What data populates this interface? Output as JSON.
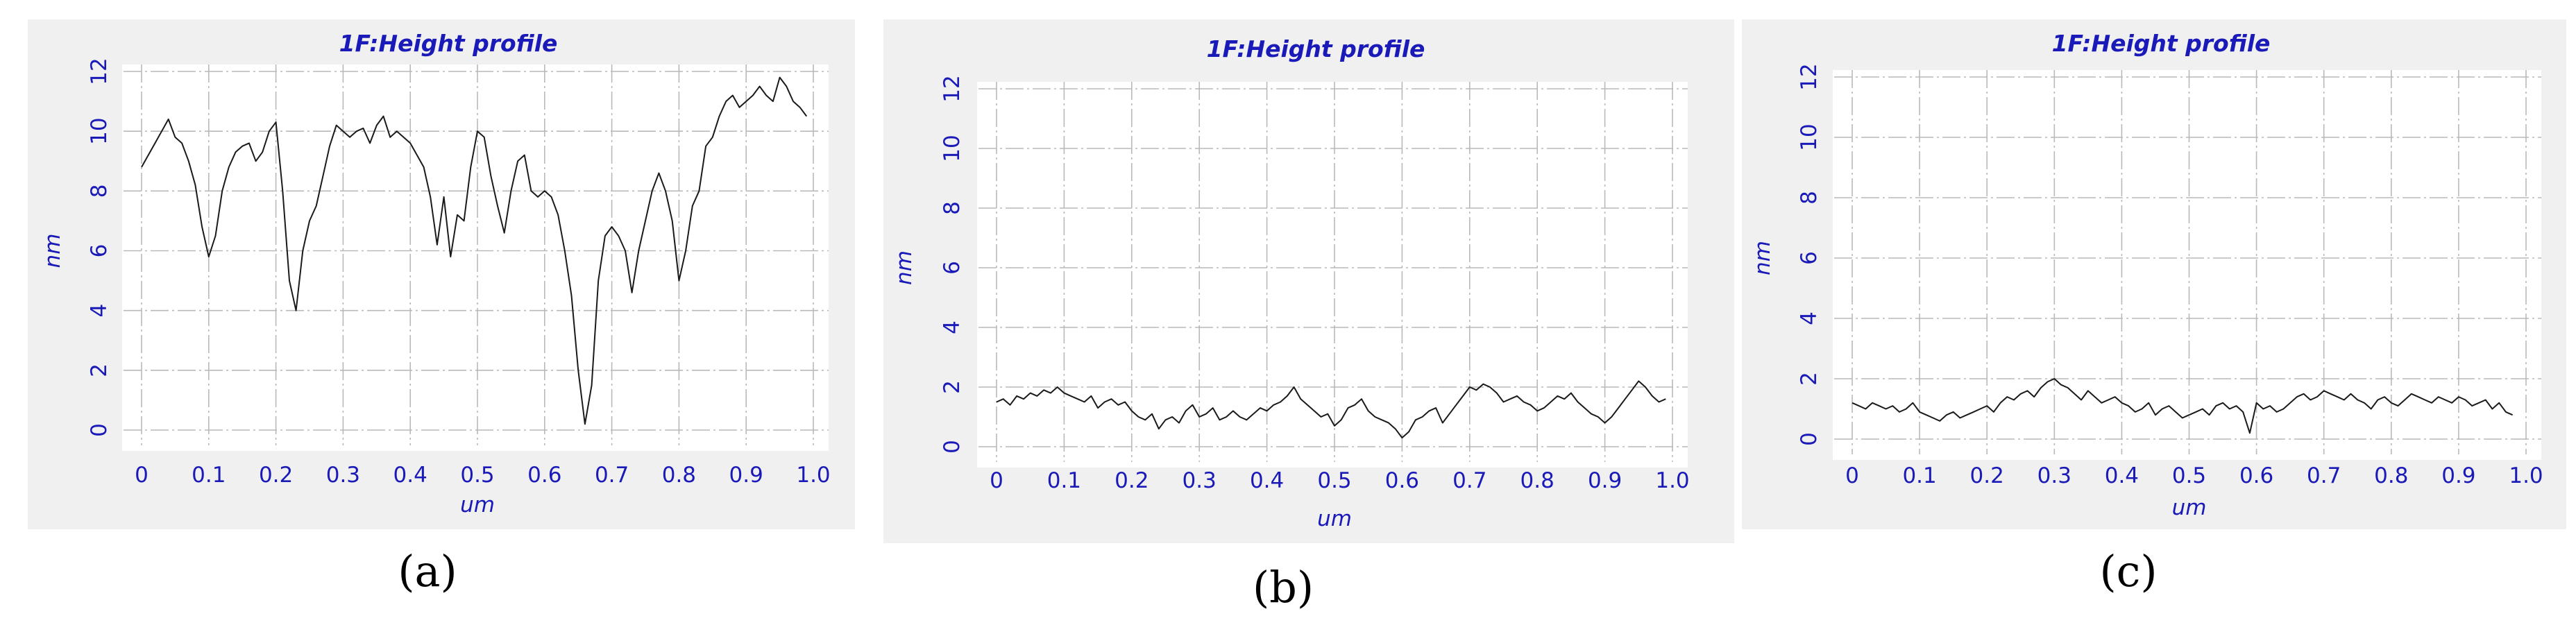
{
  "chart_data": [
    {
      "type": "line",
      "title": "1F:Height profile",
      "xlabel": "um",
      "ylabel": "nm",
      "xlim": [
        0,
        1.0
      ],
      "ylim": [
        0,
        12
      ],
      "xticks": [
        "0",
        "0.1",
        "0.2",
        "0.3",
        "0.4",
        "0.5",
        "0.6",
        "0.7",
        "0.8",
        "0.9",
        "1.0"
      ],
      "yticks": [
        "0",
        "2",
        "4",
        "6",
        "8",
        "10",
        "12"
      ],
      "caption": "(a)",
      "series": [
        {
          "x": [
            0,
            0.01,
            0.02,
            0.03,
            0.04,
            0.05,
            0.06,
            0.07,
            0.08,
            0.09,
            0.1,
            0.11,
            0.12,
            0.13,
            0.14,
            0.15,
            0.16,
            0.17,
            0.18,
            0.19,
            0.2,
            0.21,
            0.22,
            0.23,
            0.24,
            0.25,
            0.26,
            0.27,
            0.28,
            0.29,
            0.3,
            0.31,
            0.32,
            0.33,
            0.34,
            0.35,
            0.36,
            0.37,
            0.38,
            0.39,
            0.4,
            0.41,
            0.42,
            0.43,
            0.44,
            0.45,
            0.46,
            0.47,
            0.48,
            0.49,
            0.5,
            0.51,
            0.52,
            0.53,
            0.54,
            0.55,
            0.56,
            0.57,
            0.58,
            0.59,
            0.6,
            0.61,
            0.62,
            0.63,
            0.64,
            0.65,
            0.66,
            0.67,
            0.68,
            0.69,
            0.7,
            0.71,
            0.72,
            0.73,
            0.74,
            0.75,
            0.76,
            0.77,
            0.78,
            0.79,
            0.8,
            0.81,
            0.82,
            0.83,
            0.84,
            0.85,
            0.86,
            0.87,
            0.88,
            0.89,
            0.9,
            0.91,
            0.92,
            0.93,
            0.94,
            0.95,
            0.96,
            0.97,
            0.98,
            0.99
          ],
          "values": [
            8.8,
            9.2,
            9.6,
            10.0,
            10.4,
            9.8,
            9.6,
            9.0,
            8.2,
            6.8,
            5.8,
            6.5,
            8.0,
            8.8,
            9.3,
            9.5,
            9.6,
            9.0,
            9.3,
            10.0,
            10.3,
            8.0,
            5.0,
            4.0,
            6.0,
            7.0,
            7.5,
            8.5,
            9.5,
            10.2,
            10.0,
            9.8,
            10.0,
            10.1,
            9.6,
            10.2,
            10.5,
            9.8,
            10.0,
            9.8,
            9.6,
            9.2,
            8.8,
            7.8,
            6.2,
            7.8,
            5.8,
            7.2,
            7.0,
            8.8,
            10.0,
            9.8,
            8.5,
            7.5,
            6.6,
            8.0,
            9.0,
            9.2,
            8.0,
            7.8,
            8.0,
            7.8,
            7.2,
            6.0,
            4.5,
            2.0,
            0.2,
            1.5,
            5.0,
            6.5,
            6.8,
            6.5,
            6.0,
            4.6,
            6.0,
            7.0,
            8.0,
            8.6,
            8.0,
            7.0,
            5.0,
            6.0,
            7.5,
            8.0,
            9.5,
            9.8,
            10.5,
            11.0,
            11.2,
            10.8,
            11.0,
            11.2,
            11.5,
            11.2,
            11.0,
            11.8,
            11.5,
            11.0,
            10.8,
            10.5
          ]
        }
      ]
    },
    {
      "type": "line",
      "title": "1F:Height profile",
      "xlabel": "um",
      "ylabel": "nm",
      "xlim": [
        0,
        1.0
      ],
      "ylim": [
        0,
        12
      ],
      "xticks": [
        "0",
        "0.1",
        "0.2",
        "0.3",
        "0.4",
        "0.5",
        "0.6",
        "0.7",
        "0.8",
        "0.9",
        "1.0"
      ],
      "yticks": [
        "0",
        "2",
        "4",
        "6",
        "8",
        "10",
        "12"
      ],
      "caption": "(b)",
      "series": [
        {
          "x": [
            0,
            0.01,
            0.02,
            0.03,
            0.04,
            0.05,
            0.06,
            0.07,
            0.08,
            0.09,
            0.1,
            0.11,
            0.12,
            0.13,
            0.14,
            0.15,
            0.16,
            0.17,
            0.18,
            0.19,
            0.2,
            0.21,
            0.22,
            0.23,
            0.24,
            0.25,
            0.26,
            0.27,
            0.28,
            0.29,
            0.3,
            0.31,
            0.32,
            0.33,
            0.34,
            0.35,
            0.36,
            0.37,
            0.38,
            0.39,
            0.4,
            0.41,
            0.42,
            0.43,
            0.44,
            0.45,
            0.46,
            0.47,
            0.48,
            0.49,
            0.5,
            0.51,
            0.52,
            0.53,
            0.54,
            0.55,
            0.56,
            0.57,
            0.58,
            0.59,
            0.6,
            0.61,
            0.62,
            0.63,
            0.64,
            0.65,
            0.66,
            0.67,
            0.68,
            0.69,
            0.7,
            0.71,
            0.72,
            0.73,
            0.74,
            0.75,
            0.76,
            0.77,
            0.78,
            0.79,
            0.8,
            0.81,
            0.82,
            0.83,
            0.84,
            0.85,
            0.86,
            0.87,
            0.88,
            0.89,
            0.9,
            0.91,
            0.92,
            0.93,
            0.94,
            0.95,
            0.96,
            0.97,
            0.98,
            0.99
          ],
          "values": [
            1.5,
            1.6,
            1.4,
            1.7,
            1.6,
            1.8,
            1.7,
            1.9,
            1.8,
            2.0,
            1.8,
            1.7,
            1.6,
            1.5,
            1.7,
            1.3,
            1.5,
            1.6,
            1.4,
            1.5,
            1.2,
            1.0,
            0.9,
            1.1,
            0.6,
            0.9,
            1.0,
            0.8,
            1.2,
            1.4,
            1.0,
            1.1,
            1.3,
            0.9,
            1.0,
            1.2,
            1.0,
            0.9,
            1.1,
            1.3,
            1.2,
            1.4,
            1.5,
            1.7,
            2.0,
            1.6,
            1.4,
            1.2,
            1.0,
            1.1,
            0.7,
            0.9,
            1.3,
            1.4,
            1.6,
            1.2,
            1.0,
            0.9,
            0.8,
            0.6,
            0.3,
            0.5,
            0.9,
            1.0,
            1.2,
            1.3,
            0.8,
            1.1,
            1.4,
            1.7,
            2.0,
            1.9,
            2.1,
            2.0,
            1.8,
            1.5,
            1.6,
            1.7,
            1.5,
            1.4,
            1.2,
            1.3,
            1.5,
            1.7,
            1.6,
            1.8,
            1.5,
            1.3,
            1.1,
            1.0,
            0.8,
            1.0,
            1.3,
            1.6,
            1.9,
            2.2,
            2.0,
            1.7,
            1.5,
            1.6
          ]
        }
      ]
    },
    {
      "type": "line",
      "title": "1F:Height profile",
      "xlabel": "um",
      "ylabel": "nm",
      "xlim": [
        0,
        1.0
      ],
      "ylim": [
        0,
        12
      ],
      "xticks": [
        "0",
        "0.1",
        "0.2",
        "0.3",
        "0.4",
        "0.5",
        "0.6",
        "0.7",
        "0.8",
        "0.9",
        "1.0"
      ],
      "yticks": [
        "0",
        "2",
        "4",
        "6",
        "8",
        "10",
        "12"
      ],
      "caption": "(c)",
      "series": [
        {
          "x": [
            0,
            0.01,
            0.02,
            0.03,
            0.04,
            0.05,
            0.06,
            0.07,
            0.08,
            0.09,
            0.1,
            0.11,
            0.12,
            0.13,
            0.14,
            0.15,
            0.16,
            0.17,
            0.18,
            0.19,
            0.2,
            0.21,
            0.22,
            0.23,
            0.24,
            0.25,
            0.26,
            0.27,
            0.28,
            0.29,
            0.3,
            0.31,
            0.32,
            0.33,
            0.34,
            0.35,
            0.36,
            0.37,
            0.38,
            0.39,
            0.4,
            0.41,
            0.42,
            0.43,
            0.44,
            0.45,
            0.46,
            0.47,
            0.48,
            0.49,
            0.5,
            0.51,
            0.52,
            0.53,
            0.54,
            0.55,
            0.56,
            0.57,
            0.58,
            0.59,
            0.6,
            0.61,
            0.62,
            0.63,
            0.64,
            0.65,
            0.66,
            0.67,
            0.68,
            0.69,
            0.7,
            0.71,
            0.72,
            0.73,
            0.74,
            0.75,
            0.76,
            0.77,
            0.78,
            0.79,
            0.8,
            0.81,
            0.82,
            0.83,
            0.84,
            0.85,
            0.86,
            0.87,
            0.88,
            0.89,
            0.9,
            0.91,
            0.92,
            0.93,
            0.94,
            0.95,
            0.96,
            0.97,
            0.98
          ],
          "values": [
            1.2,
            1.1,
            1.0,
            1.2,
            1.1,
            1.0,
            1.1,
            0.9,
            1.0,
            1.2,
            0.9,
            0.8,
            0.7,
            0.6,
            0.8,
            0.9,
            0.7,
            0.8,
            0.9,
            1.0,
            1.1,
            0.9,
            1.2,
            1.4,
            1.3,
            1.5,
            1.6,
            1.4,
            1.7,
            1.9,
            2.0,
            1.8,
            1.7,
            1.5,
            1.3,
            1.6,
            1.4,
            1.2,
            1.3,
            1.4,
            1.2,
            1.1,
            0.9,
            1.0,
            1.2,
            0.8,
            1.0,
            1.1,
            0.9,
            0.7,
            0.8,
            0.9,
            1.0,
            0.8,
            1.1,
            1.2,
            1.0,
            1.1,
            0.9,
            0.2,
            1.2,
            1.0,
            1.1,
            0.9,
            1.0,
            1.2,
            1.4,
            1.5,
            1.3,
            1.4,
            1.6,
            1.5,
            1.4,
            1.3,
            1.5,
            1.3,
            1.2,
            1.0,
            1.3,
            1.4,
            1.2,
            1.1,
            1.3,
            1.5,
            1.4,
            1.3,
            1.2,
            1.4,
            1.3,
            1.2,
            1.4,
            1.3,
            1.1,
            1.2,
            1.3,
            1.0,
            1.2,
            0.9,
            0.8
          ]
        }
      ]
    }
  ]
}
